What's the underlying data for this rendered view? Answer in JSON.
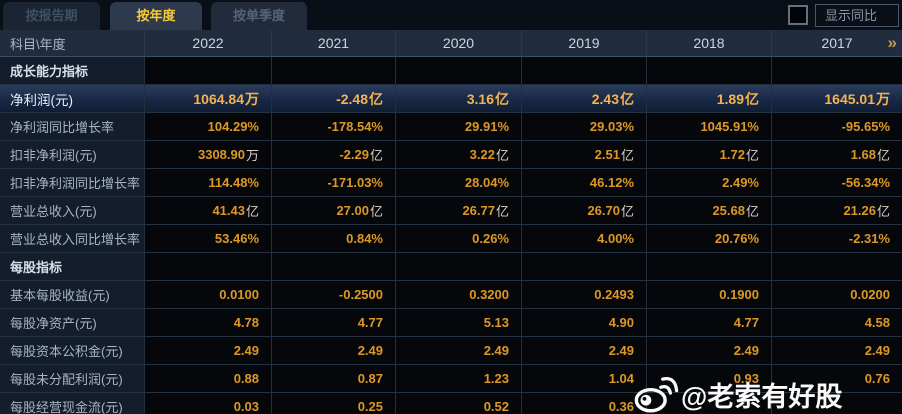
{
  "tabs": [
    {
      "id": "by-report-period",
      "label": "按报告期",
      "active": false
    },
    {
      "id": "by-year",
      "label": "按年度",
      "active": true
    },
    {
      "id": "by-quarter",
      "label": "按单季度",
      "active": false
    }
  ],
  "controls": {
    "show_yoy_label": "显示同比",
    "show_yoy_checked": false
  },
  "table": {
    "corner_label": "科目\\年度",
    "years": [
      "2022",
      "2021",
      "2020",
      "2019",
      "2018",
      "2017"
    ],
    "more_icon": "»",
    "rows": [
      {
        "type": "section",
        "label": "成长能力指标"
      },
      {
        "type": "data",
        "label": "净利润(元)",
        "highlight": true,
        "values": [
          "1064.84万",
          "-2.48亿",
          "3.16亿",
          "2.43亿",
          "1.89亿",
          "1645.01万"
        ]
      },
      {
        "type": "data",
        "label": "净利润同比增长率",
        "values": [
          "104.29%",
          "-178.54%",
          "29.91%",
          "29.03%",
          "1045.91%",
          "-95.65%"
        ]
      },
      {
        "type": "data",
        "label": "扣非净利润(元)",
        "values": [
          "3308.90万",
          "-2.29亿",
          "3.22亿",
          "2.51亿",
          "1.72亿",
          "1.68亿"
        ]
      },
      {
        "type": "data",
        "label": "扣非净利润同比增长率",
        "values": [
          "114.48%",
          "-171.03%",
          "28.04%",
          "46.12%",
          "2.49%",
          "-56.34%"
        ]
      },
      {
        "type": "data",
        "label": "营业总收入(元)",
        "values": [
          "41.43亿",
          "27.00亿",
          "26.77亿",
          "26.70亿",
          "25.68亿",
          "21.26亿"
        ]
      },
      {
        "type": "data",
        "label": "营业总收入同比增长率",
        "values": [
          "53.46%",
          "0.84%",
          "0.26%",
          "4.00%",
          "20.76%",
          "-2.31%"
        ]
      },
      {
        "type": "section",
        "label": "每股指标"
      },
      {
        "type": "data",
        "label": "基本每股收益(元)",
        "values": [
          "0.0100",
          "-0.2500",
          "0.3200",
          "0.2493",
          "0.1900",
          "0.0200"
        ]
      },
      {
        "type": "data",
        "label": "每股净资产(元)",
        "values": [
          "4.78",
          "4.77",
          "5.13",
          "4.90",
          "4.77",
          "4.58"
        ]
      },
      {
        "type": "data",
        "label": "每股资本公积金(元)",
        "values": [
          "2.49",
          "2.49",
          "2.49",
          "2.49",
          "2.49",
          "2.49"
        ]
      },
      {
        "type": "data",
        "label": "每股未分配利润(元)",
        "values": [
          "0.88",
          "0.87",
          "1.23",
          "1.04",
          "0.93",
          "0.76"
        ]
      },
      {
        "type": "data",
        "label": "每股经营现金流(元)",
        "values": [
          "0.03",
          "0.25",
          "0.52",
          "0.36",
          "",
          ""
        ]
      }
    ]
  },
  "watermark": {
    "icon": "weibo-icon",
    "text": "@老索有好股"
  },
  "colors": {
    "background": "#0a0e16",
    "header_bg": "#212d3e",
    "label_cell_bg": "#141d2c",
    "value_cell_bg": "#06070a",
    "value_text": "#dc9827",
    "highlight_value_text": "#f4b350",
    "active_tab_text": "#f7ca35"
  }
}
